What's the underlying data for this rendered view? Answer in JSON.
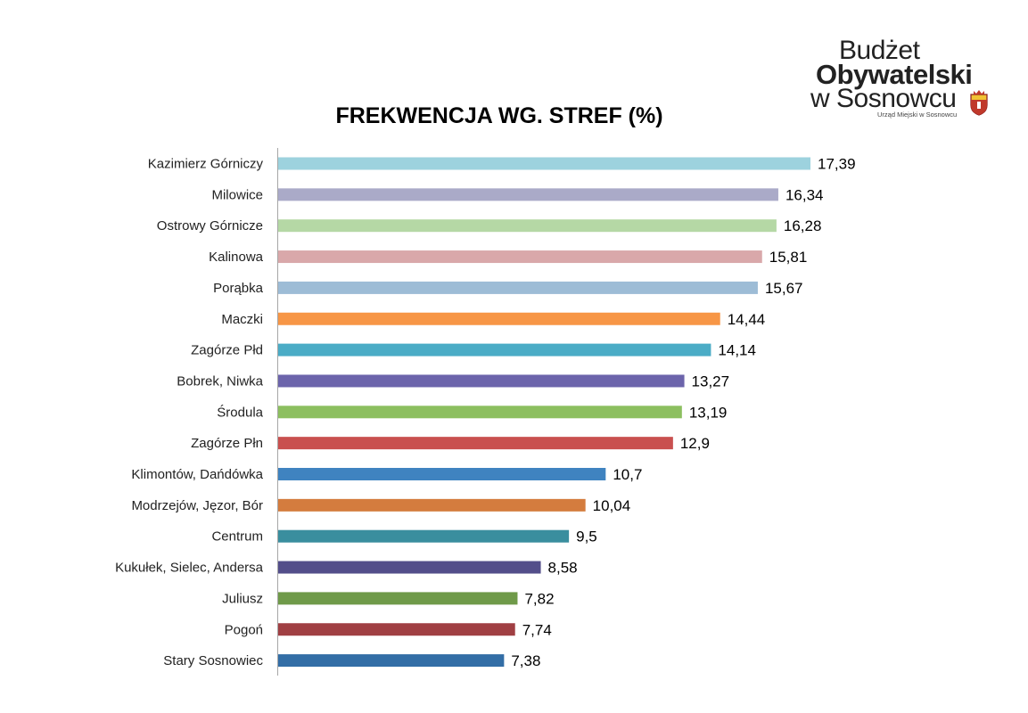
{
  "logo": {
    "line1": "Budżet",
    "line2": "Obywatelski",
    "line3": "w Sosnowcu",
    "line4": "Urząd Miejski w Sosnowcu"
  },
  "chart_data": {
    "type": "bar",
    "orientation": "horizontal",
    "title": "FREKWENCJA WG. STREF (%)",
    "xlabel": "",
    "ylabel": "",
    "xlim": [
      0,
      20
    ],
    "grid": false,
    "categories": [
      "Kazimierz Górniczy",
      "Milowice",
      "Ostrowy Górnicze",
      "Kalinowa",
      "Porąbka",
      "Maczki",
      "Zagórze Płd",
      "Bobrek, Niwka",
      "Środula",
      "Zagórze Płn",
      "Klimontów, Dańdówka",
      "Modrzejów, Jęzor, Bór",
      "Centrum",
      "Kukułek, Sielec, Andersa",
      "Juliusz",
      "Pogoń",
      "Stary Sosnowiec"
    ],
    "values": [
      17.39,
      16.34,
      16.28,
      15.81,
      15.67,
      14.44,
      14.14,
      13.27,
      13.19,
      12.9,
      10.7,
      10.04,
      9.5,
      8.58,
      7.82,
      7.74,
      7.38
    ],
    "value_labels": [
      "17,39",
      "16,34",
      "16,28",
      "15,81",
      "15,67",
      "14,44",
      "14,14",
      "13,27",
      "13,19",
      "12,9",
      "10,7",
      "10,04",
      "9,5",
      "8,58",
      "7,82",
      "7,74",
      "7,38"
    ],
    "colors": [
      "#9dd2de",
      "#aaaac8",
      "#b5d8a5",
      "#d9a8aa",
      "#9dbcd6",
      "#f79646",
      "#4bacc6",
      "#6c64ab",
      "#8cbf5f",
      "#c9504f",
      "#3f83c0",
      "#d47c3e",
      "#3a8e9e",
      "#534e8a",
      "#6f9a49",
      "#a03f43",
      "#336ea6"
    ]
  }
}
